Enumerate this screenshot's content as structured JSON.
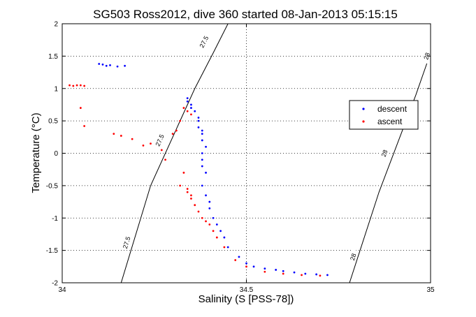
{
  "chart_data": {
    "type": "scatter",
    "title": "SG503 Ross2012, dive 360 started 08-Jan-2013 05:15:15",
    "xlabel": "Salinity (S [PSS-78])",
    "ylabel": "Temperature (°C)",
    "xlim": [
      34,
      35
    ],
    "ylim": [
      -2,
      2
    ],
    "xticks": [
      34,
      34.5,
      35
    ],
    "xtick_labels": [
      "34",
      "34.5",
      "35"
    ],
    "yticks": [
      -2,
      -1.5,
      -1,
      -0.5,
      0,
      0.5,
      1,
      1.5,
      2
    ],
    "ytick_labels": [
      "-2",
      "-1.5",
      "-1",
      "-0.5",
      "0",
      "0.5",
      "1",
      "1.5",
      "2"
    ],
    "grid": true,
    "legend_position": "right",
    "contours": [
      {
        "level_label": "27.5",
        "points": [
          [
            34.16,
            -2.0
          ],
          [
            34.24,
            -0.5
          ],
          [
            34.36,
            1.0
          ],
          [
            34.41,
            1.55
          ],
          [
            34.45,
            2.0
          ]
        ],
        "label_positions": [
          [
            34.175,
            -1.38
          ],
          [
            34.265,
            0.2
          ],
          [
            34.385,
            1.72
          ]
        ]
      },
      {
        "level_label": "28",
        "points": [
          [
            34.78,
            -2.0
          ],
          [
            34.86,
            -0.6
          ],
          [
            34.96,
            0.9
          ],
          [
            35.0,
            1.55
          ]
        ],
        "label_positions": [
          [
            34.79,
            -1.6
          ],
          [
            34.875,
            0.0
          ],
          [
            34.99,
            1.5
          ]
        ]
      }
    ],
    "series": [
      {
        "name": "descent",
        "color": "#0000ff",
        "x": [
          34.1,
          34.11,
          34.12,
          34.13,
          34.15,
          34.17,
          34.34,
          34.34,
          34.35,
          34.35,
          34.36,
          34.37,
          34.37,
          34.37,
          34.38,
          34.38,
          34.38,
          34.39,
          34.38,
          34.38,
          34.38,
          34.39,
          34.38,
          34.39,
          34.4,
          34.4,
          34.41,
          34.42,
          34.43,
          34.44,
          34.45,
          34.48,
          34.5,
          34.52,
          34.55,
          34.58,
          34.6,
          34.63,
          34.66,
          34.69,
          34.72
        ],
        "y": [
          1.38,
          1.37,
          1.35,
          1.36,
          1.34,
          1.35,
          0.85,
          0.8,
          0.75,
          0.7,
          0.65,
          0.55,
          0.5,
          0.4,
          0.35,
          0.3,
          0.2,
          0.1,
          0.0,
          -0.1,
          -0.2,
          -0.3,
          -0.5,
          -0.65,
          -0.75,
          -0.85,
          -1.0,
          -1.1,
          -1.2,
          -1.3,
          -1.45,
          -1.6,
          -1.7,
          -1.75,
          -1.78,
          -1.8,
          -1.82,
          -1.84,
          -1.86,
          -1.87,
          -1.88
        ]
      },
      {
        "name": "ascent",
        "color": "#ff0000",
        "x": [
          34.02,
          34.03,
          34.04,
          34.05,
          34.06,
          34.05,
          34.06,
          34.14,
          34.16,
          34.19,
          34.22,
          34.24,
          34.27,
          34.28,
          34.3,
          34.31,
          34.32,
          34.33,
          34.34,
          34.35,
          34.33,
          34.32,
          34.34,
          34.34,
          34.35,
          34.35,
          34.36,
          34.37,
          34.38,
          34.39,
          34.4,
          34.41,
          34.42,
          34.44,
          34.47,
          34.5,
          34.55,
          34.6,
          34.65,
          34.7
        ],
        "y": [
          1.05,
          1.04,
          1.05,
          1.05,
          1.04,
          0.7,
          0.42,
          0.3,
          0.27,
          0.22,
          0.12,
          0.15,
          0.05,
          -0.1,
          0.3,
          0.35,
          0.5,
          0.7,
          0.65,
          0.6,
          -0.3,
          -0.5,
          -0.55,
          -0.6,
          -0.65,
          -0.7,
          -0.8,
          -0.9,
          -1.0,
          -1.05,
          -1.1,
          -1.2,
          -1.3,
          -1.45,
          -1.65,
          -1.75,
          -1.83,
          -1.86,
          -1.88,
          -1.89
        ]
      }
    ]
  }
}
